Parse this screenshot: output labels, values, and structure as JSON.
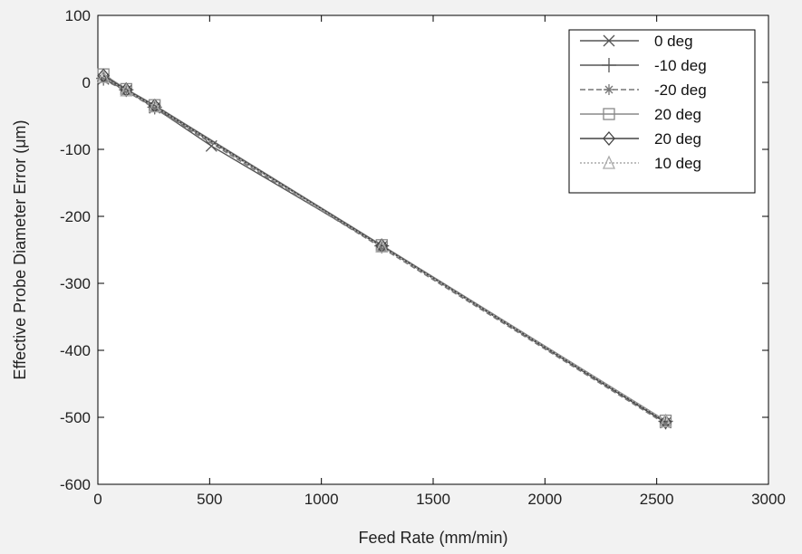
{
  "chart_data": {
    "type": "line",
    "xlabel": "Feed Rate (mm/min)",
    "ylabel": "Effective Probe Diameter Error (μm)",
    "xlim": [
      0,
      3000
    ],
    "ylim": [
      -600,
      100
    ],
    "x_ticks": [
      0,
      500,
      1000,
      1500,
      2000,
      2500,
      3000
    ],
    "y_ticks": [
      100,
      0,
      -100,
      -200,
      -300,
      -400,
      -500,
      -600
    ],
    "grid": false,
    "legend_position": "top-right",
    "series": [
      {
        "name": "0 deg",
        "marker": "x",
        "color": "#555555",
        "dash": "",
        "x": [
          25,
          127,
          254,
          508,
          1270,
          2540
        ],
        "y": [
          5,
          -12,
          -38,
          -95,
          -245,
          -508
        ]
      },
      {
        "name": "-10 deg",
        "marker": "+",
        "color": "#555555",
        "dash": "",
        "x": [
          25,
          127,
          254,
          1270,
          2540
        ],
        "y": [
          6,
          -11,
          -37,
          -244,
          -506
        ]
      },
      {
        "name": "-20 deg",
        "marker": "*",
        "color": "#777777",
        "dash": "6 3",
        "x": [
          25,
          127,
          254,
          1270,
          2540
        ],
        "y": [
          4,
          -13,
          -39,
          -247,
          -510
        ]
      },
      {
        "name": "20 deg",
        "marker": "square",
        "color": "#888888",
        "dash": "",
        "x": [
          25,
          127,
          254,
          1270,
          2540
        ],
        "y": [
          12,
          -10,
          -34,
          -243,
          -505
        ]
      },
      {
        "name": "20 deg",
        "marker": "diamond",
        "color": "#444444",
        "dash": "",
        "x": [
          25,
          127,
          254,
          1270,
          2540
        ],
        "y": [
          10,
          -11,
          -35,
          -244,
          -507
        ]
      },
      {
        "name": "10 deg",
        "marker": "triangle",
        "color": "#aaaaaa",
        "dash": "2 2",
        "x": [
          25,
          127,
          254,
          1270,
          2540
        ],
        "y": [
          8,
          -12,
          -36,
          -245,
          -506
        ]
      }
    ]
  }
}
